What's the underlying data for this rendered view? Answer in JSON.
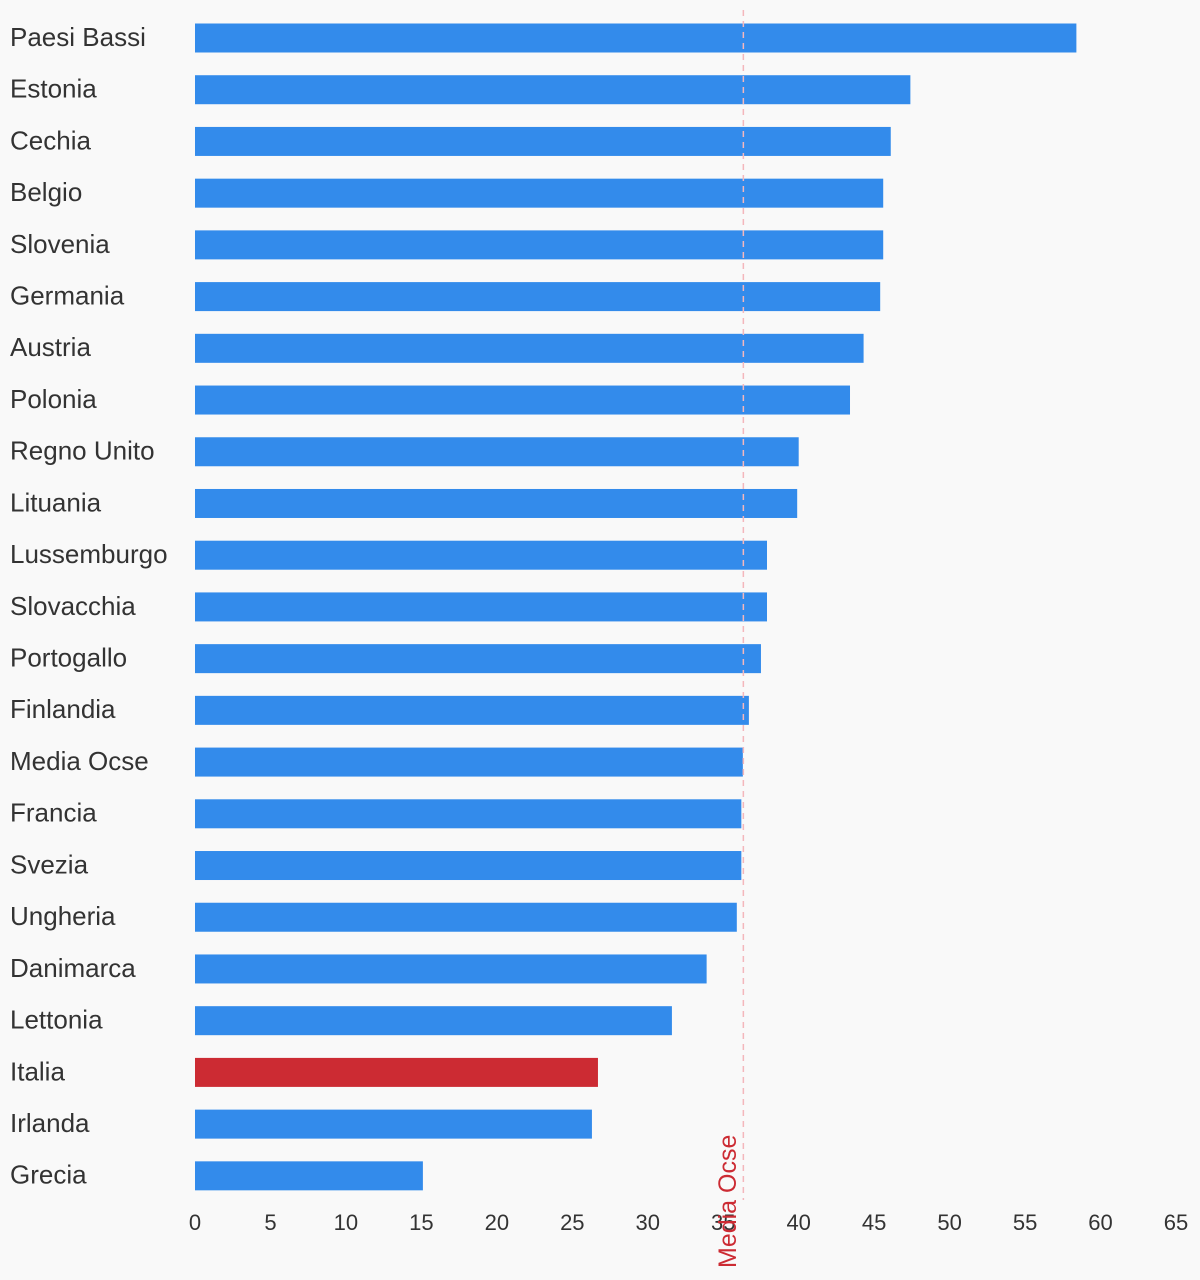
{
  "chart_data": {
    "type": "bar",
    "orientation": "horizontal",
    "categories": [
      "Paesi Bassi",
      "Estonia",
      "Cechia",
      "Belgio",
      "Slovenia",
      "Germania",
      "Austria",
      "Polonia",
      "Regno Unito",
      "Lituania",
      "Lussemburgo",
      "Slovacchia",
      "Portogallo",
      "Finlandia",
      "Media Ocse",
      "Francia",
      "Svezia",
      "Ungheria",
      "Danimarca",
      "Lettonia",
      "Italia",
      "Irlanda",
      "Grecia"
    ],
    "values": [
      58.4,
      47.4,
      46.1,
      45.6,
      45.6,
      45.4,
      44.3,
      43.4,
      40.0,
      39.9,
      37.9,
      37.9,
      37.5,
      36.7,
      36.3,
      36.2,
      36.2,
      35.9,
      33.9,
      31.6,
      26.7,
      26.3,
      15.1
    ],
    "highlight_category": "Italia",
    "title": "",
    "xlabel": "",
    "ylabel": "",
    "xlim": [
      0,
      65
    ],
    "xticks": [
      0,
      5,
      10,
      15,
      20,
      25,
      30,
      35,
      40,
      45,
      50,
      55,
      60,
      65
    ],
    "grid": false,
    "reference_line": {
      "value": 36.3,
      "label": "Media Ocse",
      "style": "dashed"
    },
    "colors": {
      "bar": "#338beb",
      "highlight": "#cc2b33",
      "reference_line": "#f4b7bc",
      "reference_label": "#cc2b33",
      "label_text": "#333333",
      "background": "#f9f9f9"
    }
  }
}
